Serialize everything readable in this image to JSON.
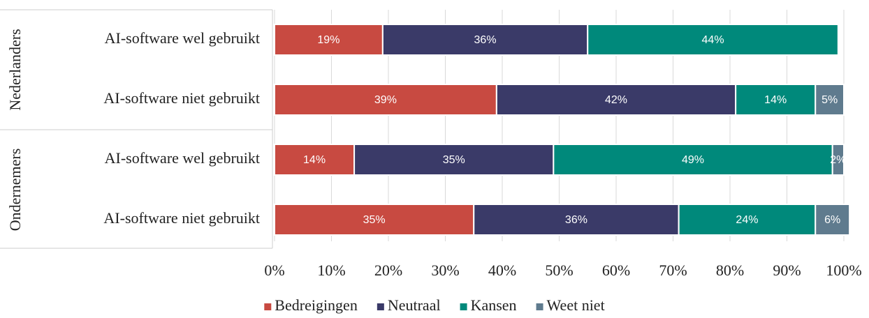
{
  "chart_data": {
    "type": "stacked-bar-horizontal",
    "groups": [
      {
        "label": "Nederlanders",
        "rows": [
          0,
          1
        ]
      },
      {
        "label": "Ondernemers",
        "rows": [
          2,
          3
        ]
      }
    ],
    "categories": [
      "AI-software wel gebruikt",
      "AI-software niet gebruikt",
      "AI-software wel gebruikt",
      "AI-software niet gebruikt"
    ],
    "series": [
      {
        "name": "Bedreigingen",
        "color": "#c84a41",
        "values": [
          19,
          39,
          14,
          35
        ],
        "value_labels": [
          "19%",
          "39%",
          "14%",
          "35%"
        ]
      },
      {
        "name": "Neutraal",
        "color": "#3a3a68",
        "values": [
          36,
          42,
          35,
          36
        ],
        "value_labels": [
          "36%",
          "42%",
          "35%",
          "36%"
        ]
      },
      {
        "name": "Kansen",
        "color": "#00897b",
        "values": [
          44,
          14,
          49,
          24
        ],
        "value_labels": [
          "44%",
          "14%",
          "49%",
          "24%"
        ]
      },
      {
        "name": "Weet niet",
        "color": "#5f7b8e",
        "values": [
          0,
          5,
          2,
          6
        ],
        "value_labels": [
          null,
          "5%",
          "2%",
          "6%"
        ]
      }
    ],
    "xlim": [
      0,
      100
    ],
    "xticks": [
      {
        "value": 0,
        "label": "0%"
      },
      {
        "value": 10,
        "label": "10%"
      },
      {
        "value": 20,
        "label": "20%"
      },
      {
        "value": 30,
        "label": "30%"
      },
      {
        "value": 40,
        "label": "40%"
      },
      {
        "value": 50,
        "label": "50%"
      },
      {
        "value": 60,
        "label": "60%"
      },
      {
        "value": 70,
        "label": "70%"
      },
      {
        "value": 80,
        "label": "80%"
      },
      {
        "value": 90,
        "label": "90%"
      },
      {
        "value": 100,
        "label": "100%"
      }
    ],
    "grid": true,
    "legend": "bottom"
  }
}
